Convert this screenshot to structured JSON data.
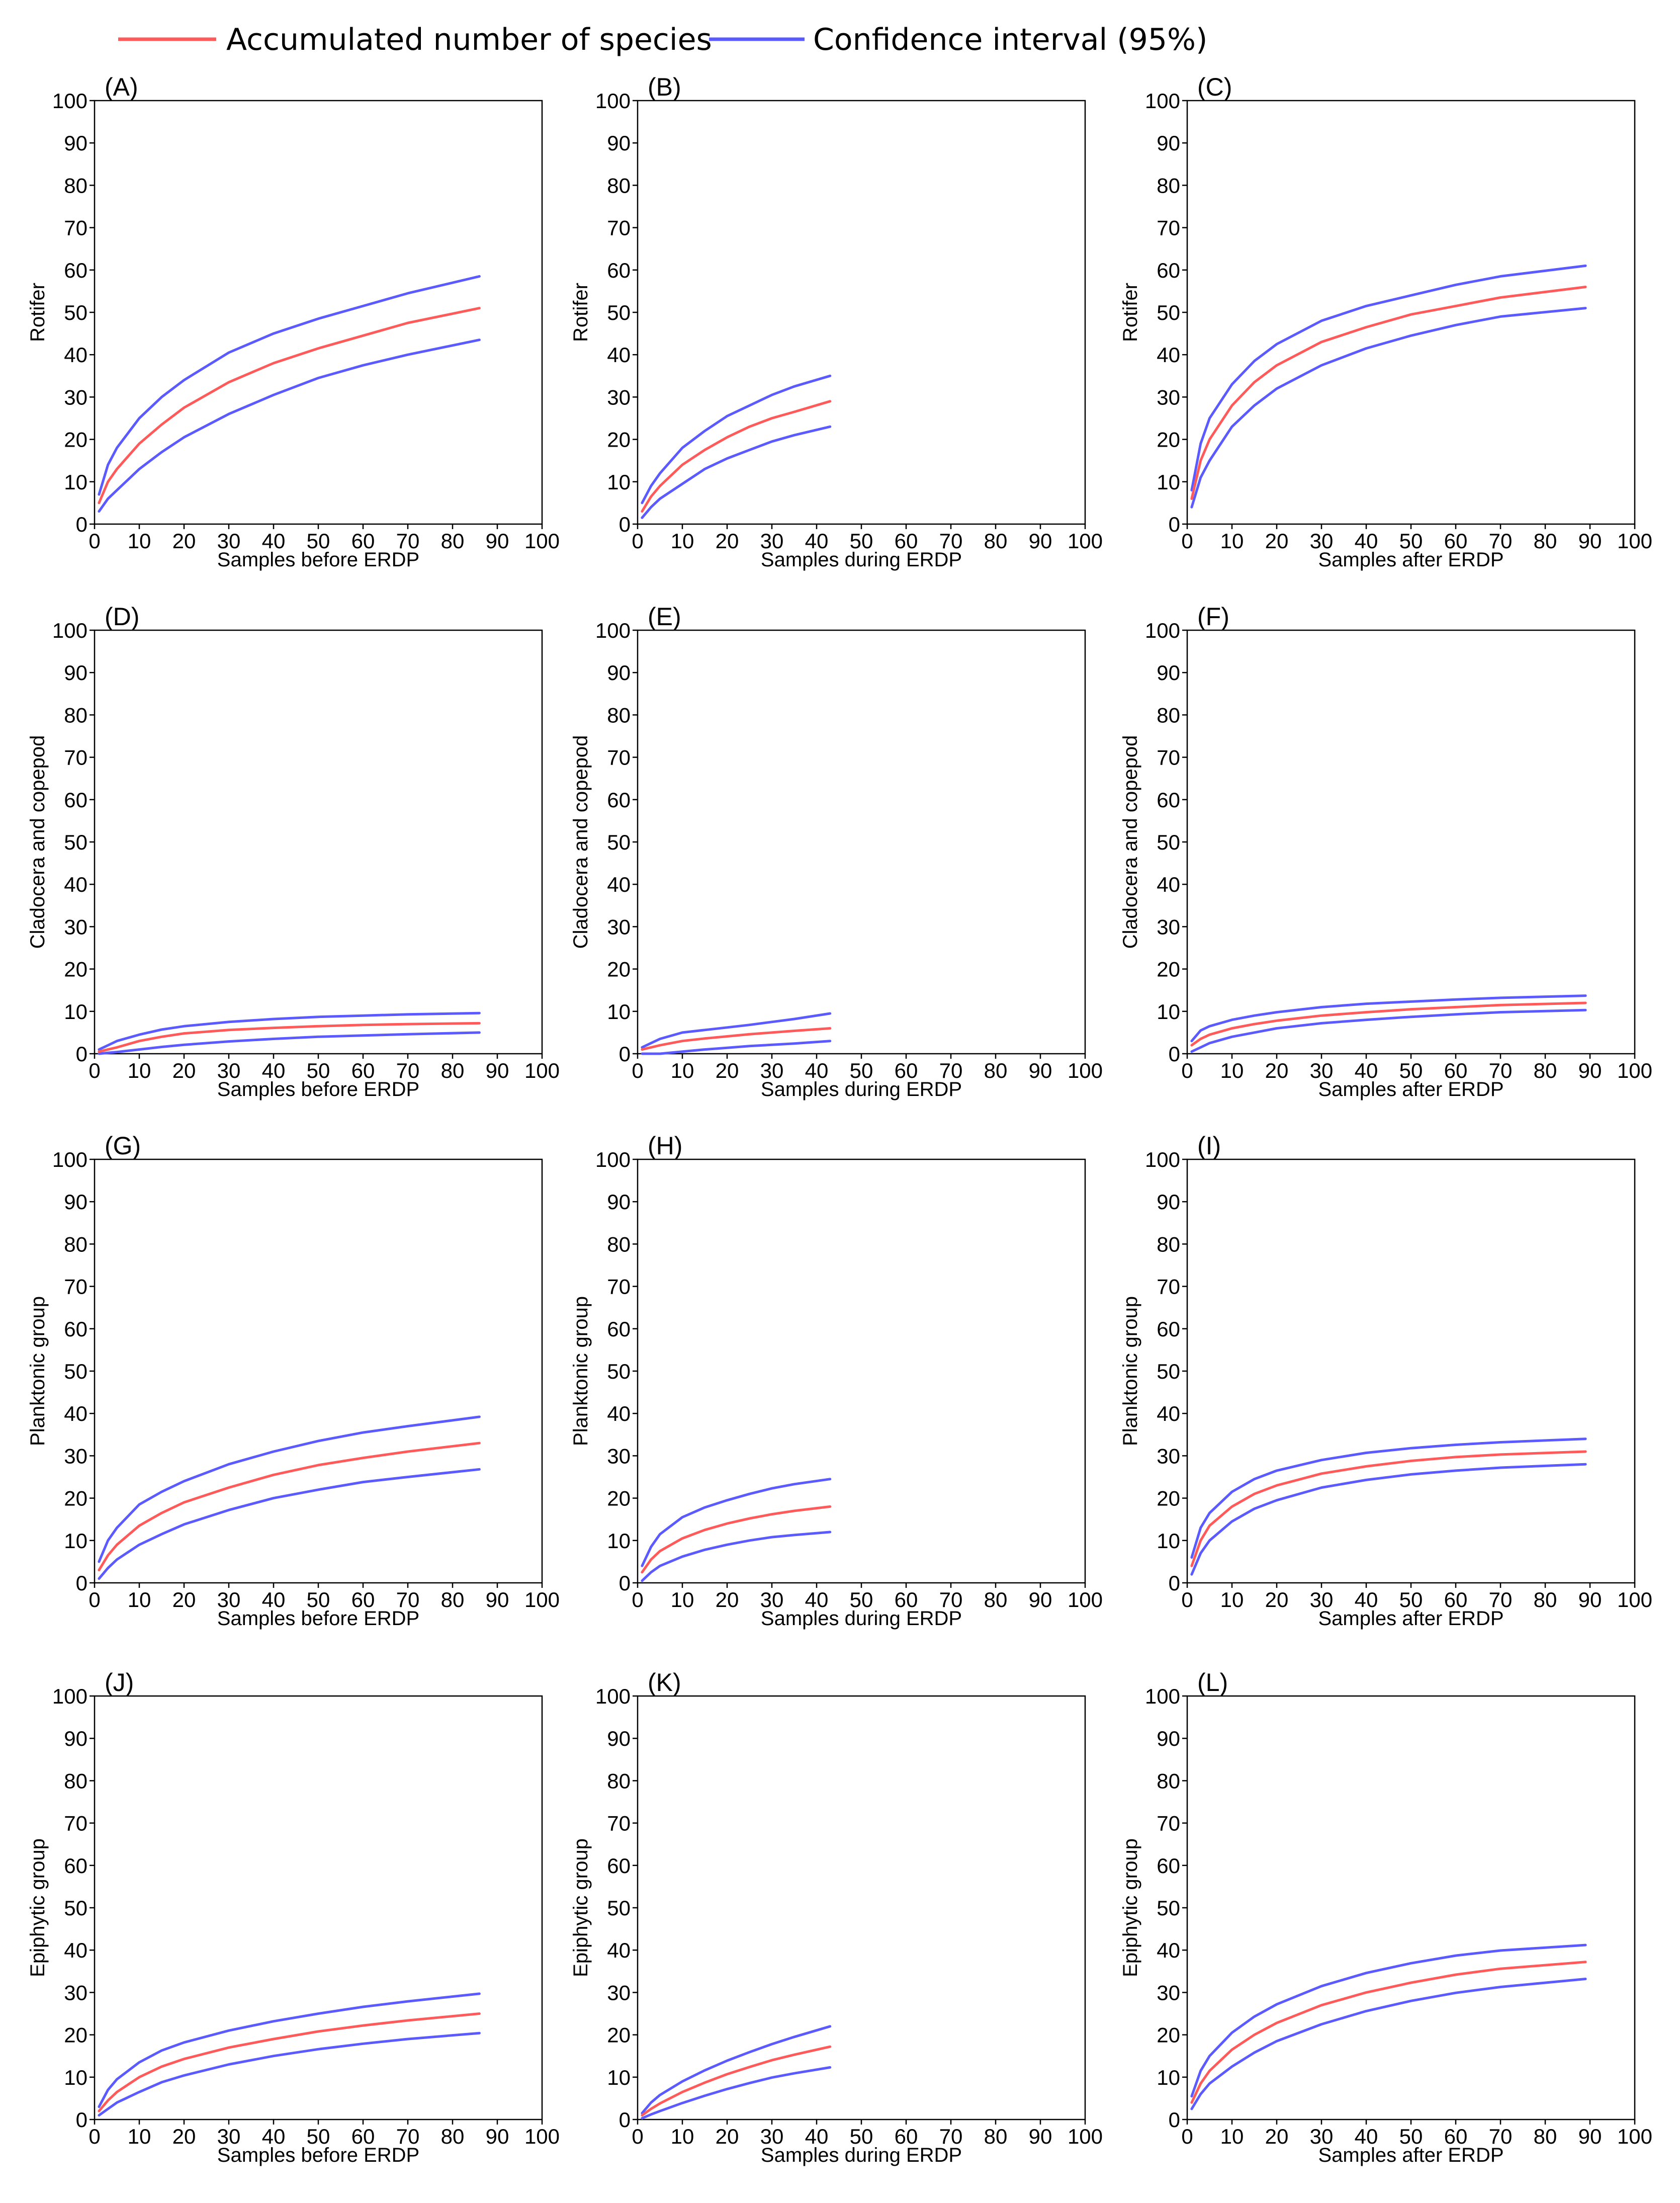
{
  "legend": {
    "entries": [
      {
        "label": "Accumulated number of species",
        "color": "#ff5a5a"
      },
      {
        "label": "Confidence interval (95%)",
        "color": "#5a5aff"
      }
    ]
  },
  "chart_data": [
    {
      "type": "line",
      "panel_label": "(A)",
      "ylabel": "Rotifer",
      "xlabel": "Samples before ERDP",
      "xlim": [
        0,
        100
      ],
      "ylim": [
        0,
        100
      ],
      "xticks": [
        0,
        10,
        20,
        30,
        40,
        50,
        60,
        70,
        80,
        90,
        100
      ],
      "yticks": [
        0,
        10,
        20,
        30,
        40,
        50,
        60,
        70,
        80,
        90,
        100
      ],
      "x": [
        1,
        3,
        5,
        10,
        15,
        20,
        30,
        40,
        50,
        60,
        70,
        86
      ],
      "series": [
        {
          "name": "Accumulated number of species",
          "values": [
            5,
            10,
            13,
            19,
            23.5,
            27.5,
            33.5,
            38,
            41.5,
            44.5,
            47.5,
            51
          ]
        },
        {
          "name": "Confidence interval (95%)",
          "values": [
            7,
            14,
            18,
            25,
            30,
            34,
            40.5,
            45,
            48.5,
            51.5,
            54.5,
            58.5
          ]
        },
        {
          "name": "Confidence interval (95%)",
          "values": [
            3,
            6,
            8,
            13,
            17,
            20.5,
            26,
            30.5,
            34.5,
            37.5,
            40,
            43.5
          ]
        }
      ]
    },
    {
      "type": "line",
      "panel_label": "(B)",
      "ylabel": "Rotifer",
      "xlabel": "Samples during ERDP",
      "xlim": [
        0,
        100
      ],
      "ylim": [
        0,
        100
      ],
      "xticks": [
        0,
        10,
        20,
        30,
        40,
        50,
        60,
        70,
        80,
        90,
        100
      ],
      "yticks": [
        0,
        10,
        20,
        30,
        40,
        50,
        60,
        70,
        80,
        90,
        100
      ],
      "x": [
        1,
        3,
        5,
        10,
        15,
        20,
        25,
        30,
        35,
        43
      ],
      "series": [
        {
          "name": "Accumulated number of species",
          "values": [
            3,
            6.5,
            9,
            14,
            17.5,
            20.5,
            23,
            25,
            26.5,
            29
          ]
        },
        {
          "name": "Confidence interval (95%)",
          "values": [
            5,
            9,
            12,
            18,
            22,
            25.5,
            28,
            30.5,
            32.5,
            35
          ]
        },
        {
          "name": "Confidence interval (95%)",
          "values": [
            1.5,
            4,
            6,
            9.5,
            13,
            15.5,
            17.5,
            19.5,
            21,
            23
          ]
        }
      ]
    },
    {
      "type": "line",
      "panel_label": "(C)",
      "ylabel": "Rotifer",
      "xlabel": "Samples after ERDP",
      "xlim": [
        0,
        100
      ],
      "ylim": [
        0,
        100
      ],
      "xticks": [
        0,
        10,
        20,
        30,
        40,
        50,
        60,
        70,
        80,
        90,
        100
      ],
      "yticks": [
        0,
        10,
        20,
        30,
        40,
        50,
        60,
        70,
        80,
        90,
        100
      ],
      "x": [
        1,
        3,
        5,
        10,
        15,
        20,
        30,
        40,
        50,
        60,
        70,
        89
      ],
      "series": [
        {
          "name": "Accumulated number of species",
          "values": [
            6,
            15,
            20,
            28,
            33.5,
            37.5,
            43,
            46.5,
            49.5,
            51.5,
            53.5,
            56
          ]
        },
        {
          "name": "Confidence interval (95%)",
          "values": [
            8,
            19,
            25,
            33,
            38.5,
            42.5,
            48,
            51.5,
            54,
            56.5,
            58.5,
            61
          ]
        },
        {
          "name": "Confidence interval (95%)",
          "values": [
            4,
            11,
            15,
            23,
            28,
            32,
            37.5,
            41.5,
            44.5,
            47,
            49,
            51
          ]
        }
      ]
    },
    {
      "type": "line",
      "panel_label": "(D)",
      "ylabel": "Cladocera and copepod",
      "xlabel": "Samples before ERDP",
      "xlim": [
        0,
        100
      ],
      "ylim": [
        0,
        100
      ],
      "xticks": [
        0,
        10,
        20,
        30,
        40,
        50,
        60,
        70,
        80,
        90,
        100
      ],
      "yticks": [
        0,
        10,
        20,
        30,
        40,
        50,
        60,
        70,
        80,
        90,
        100
      ],
      "x": [
        1,
        3,
        5,
        10,
        15,
        20,
        30,
        40,
        50,
        60,
        70,
        86
      ],
      "series": [
        {
          "name": "Accumulated number of species",
          "values": [
            0.5,
            1,
            1.5,
            3,
            4,
            4.8,
            5.6,
            6.1,
            6.5,
            6.8,
            7,
            7.2
          ]
        },
        {
          "name": "Confidence interval (95%)",
          "values": [
            1,
            2,
            3,
            4.5,
            5.7,
            6.5,
            7.5,
            8.2,
            8.7,
            9,
            9.3,
            9.6
          ]
        },
        {
          "name": "Confidence interval (95%)",
          "values": [
            0,
            0.2,
            0.4,
            1,
            1.6,
            2.1,
            2.9,
            3.5,
            4,
            4.3,
            4.6,
            5
          ]
        }
      ]
    },
    {
      "type": "line",
      "panel_label": "(E)",
      "ylabel": "Cladocera and copepod",
      "xlabel": "Samples during ERDP",
      "xlim": [
        0,
        100
      ],
      "ylim": [
        0,
        100
      ],
      "xticks": [
        0,
        10,
        20,
        30,
        40,
        50,
        60,
        70,
        80,
        90,
        100
      ],
      "yticks": [
        0,
        10,
        20,
        30,
        40,
        50,
        60,
        70,
        80,
        90,
        100
      ],
      "x": [
        1,
        3,
        5,
        10,
        15,
        20,
        25,
        30,
        35,
        43
      ],
      "series": [
        {
          "name": "Accumulated number of species",
          "values": [
            1,
            1.5,
            2,
            3,
            3.6,
            4.1,
            4.6,
            5,
            5.4,
            6
          ]
        },
        {
          "name": "Confidence interval (95%)",
          "values": [
            1.5,
            2.5,
            3.5,
            5,
            5.6,
            6.2,
            6.8,
            7.5,
            8.2,
            9.5
          ]
        },
        {
          "name": "Confidence interval (95%)",
          "values": [
            0,
            0,
            0,
            0.5,
            1,
            1.4,
            1.8,
            2.1,
            2.4,
            3
          ]
        }
      ]
    },
    {
      "type": "line",
      "panel_label": "(F)",
      "ylabel": "Cladocera and copepod",
      "xlabel": "Samples after ERDP",
      "xlim": [
        0,
        100
      ],
      "ylim": [
        0,
        100
      ],
      "xticks": [
        0,
        10,
        20,
        30,
        40,
        50,
        60,
        70,
        80,
        90,
        100
      ],
      "yticks": [
        0,
        10,
        20,
        30,
        40,
        50,
        60,
        70,
        80,
        90,
        100
      ],
      "x": [
        1,
        3,
        5,
        10,
        15,
        20,
        30,
        40,
        50,
        60,
        70,
        89
      ],
      "series": [
        {
          "name": "Accumulated number of species",
          "values": [
            2,
            3.5,
            4.5,
            6,
            7,
            7.8,
            9,
            9.8,
            10.5,
            11,
            11.5,
            12
          ]
        },
        {
          "name": "Confidence interval (95%)",
          "values": [
            3,
            5.5,
            6.5,
            8,
            9,
            9.8,
            11,
            11.8,
            12.3,
            12.8,
            13.2,
            13.7
          ]
        },
        {
          "name": "Confidence interval (95%)",
          "values": [
            0.5,
            1.5,
            2.5,
            4,
            5,
            6,
            7.2,
            8,
            8.7,
            9.3,
            9.8,
            10.3
          ]
        }
      ]
    },
    {
      "type": "line",
      "panel_label": "(G)",
      "ylabel": "Planktonic group",
      "xlabel": "Samples before ERDP",
      "xlim": [
        0,
        100
      ],
      "ylim": [
        0,
        100
      ],
      "xticks": [
        0,
        10,
        20,
        30,
        40,
        50,
        60,
        70,
        80,
        90,
        100
      ],
      "yticks": [
        0,
        10,
        20,
        30,
        40,
        50,
        60,
        70,
        80,
        90,
        100
      ],
      "x": [
        1,
        3,
        5,
        10,
        15,
        20,
        30,
        40,
        50,
        60,
        70,
        86
      ],
      "series": [
        {
          "name": "Accumulated number of species",
          "values": [
            3,
            6.5,
            9,
            13.5,
            16.5,
            19,
            22.5,
            25.5,
            27.8,
            29.5,
            31,
            33
          ]
        },
        {
          "name": "Confidence interval (95%)",
          "values": [
            5,
            10,
            13,
            18.5,
            21.5,
            24,
            28,
            31,
            33.5,
            35.5,
            37,
            39.2
          ]
        },
        {
          "name": "Confidence interval (95%)",
          "values": [
            1,
            3.5,
            5.5,
            9,
            11.5,
            13.8,
            17.2,
            20,
            22,
            23.8,
            25,
            26.8
          ]
        }
      ]
    },
    {
      "type": "line",
      "panel_label": "(H)",
      "ylabel": "Planktonic group",
      "xlabel": "Samples during ERDP",
      "xlim": [
        0,
        100
      ],
      "ylim": [
        0,
        100
      ],
      "xticks": [
        0,
        10,
        20,
        30,
        40,
        50,
        60,
        70,
        80,
        90,
        100
      ],
      "yticks": [
        0,
        10,
        20,
        30,
        40,
        50,
        60,
        70,
        80,
        90,
        100
      ],
      "x": [
        1,
        3,
        5,
        10,
        15,
        20,
        25,
        30,
        35,
        43
      ],
      "series": [
        {
          "name": "Accumulated number of species",
          "values": [
            2.5,
            5.5,
            7.5,
            10.5,
            12.5,
            14,
            15.2,
            16.2,
            17,
            18
          ]
        },
        {
          "name": "Confidence interval (95%)",
          "values": [
            4,
            8.5,
            11.5,
            15.5,
            17.8,
            19.5,
            21,
            22.3,
            23.3,
            24.5
          ]
        },
        {
          "name": "Confidence interval (95%)",
          "values": [
            0.5,
            2.5,
            4,
            6.2,
            7.8,
            9,
            10,
            10.8,
            11.3,
            12
          ]
        }
      ]
    },
    {
      "type": "line",
      "panel_label": "(I)",
      "ylabel": "Planktonic group",
      "xlabel": "Samples after ERDP",
      "xlim": [
        0,
        100
      ],
      "ylim": [
        0,
        100
      ],
      "xticks": [
        0,
        10,
        20,
        30,
        40,
        50,
        60,
        70,
        80,
        90,
        100
      ],
      "yticks": [
        0,
        10,
        20,
        30,
        40,
        50,
        60,
        70,
        80,
        90,
        100
      ],
      "x": [
        1,
        3,
        5,
        10,
        15,
        20,
        30,
        40,
        50,
        60,
        70,
        89
      ],
      "series": [
        {
          "name": "Accumulated number of species",
          "values": [
            4,
            10,
            13.5,
            18,
            21,
            23,
            25.8,
            27.5,
            28.8,
            29.7,
            30.3,
            31
          ]
        },
        {
          "name": "Confidence interval (95%)",
          "values": [
            6,
            13,
            16.5,
            21.5,
            24.5,
            26.5,
            29,
            30.7,
            31.8,
            32.6,
            33.2,
            34
          ]
        },
        {
          "name": "Confidence interval (95%)",
          "values": [
            2,
            7,
            10,
            14.5,
            17.5,
            19.5,
            22.5,
            24.3,
            25.6,
            26.5,
            27.2,
            28
          ]
        }
      ]
    },
    {
      "type": "line",
      "panel_label": "(J)",
      "ylabel": "Epiphytic group",
      "xlabel": "Samples before ERDP",
      "xlim": [
        0,
        100
      ],
      "ylim": [
        0,
        100
      ],
      "xticks": [
        0,
        10,
        20,
        30,
        40,
        50,
        60,
        70,
        80,
        90,
        100
      ],
      "yticks": [
        0,
        10,
        20,
        30,
        40,
        50,
        60,
        70,
        80,
        90,
        100
      ],
      "x": [
        1,
        3,
        5,
        10,
        15,
        20,
        30,
        40,
        50,
        60,
        70,
        86
      ],
      "series": [
        {
          "name": "Accumulated number of species",
          "values": [
            2,
            4.5,
            6.5,
            10,
            12.5,
            14.3,
            17,
            19,
            20.8,
            22.2,
            23.4,
            25
          ]
        },
        {
          "name": "Confidence interval (95%)",
          "values": [
            3,
            7,
            9.5,
            13.5,
            16.3,
            18.2,
            21,
            23.2,
            25,
            26.6,
            27.9,
            29.7
          ]
        },
        {
          "name": "Confidence interval (95%)",
          "values": [
            1,
            2.5,
            4,
            6.5,
            8.8,
            10.4,
            13,
            15,
            16.6,
            17.9,
            19,
            20.4
          ]
        }
      ]
    },
    {
      "type": "line",
      "panel_label": "(K)",
      "ylabel": "Epiphytic group",
      "xlabel": "Samples during ERDP",
      "xlim": [
        0,
        100
      ],
      "ylim": [
        0,
        100
      ],
      "xticks": [
        0,
        10,
        20,
        30,
        40,
        50,
        60,
        70,
        80,
        90,
        100
      ],
      "yticks": [
        0,
        10,
        20,
        30,
        40,
        50,
        60,
        70,
        80,
        90,
        100
      ],
      "x": [
        1,
        3,
        5,
        10,
        15,
        20,
        25,
        30,
        35,
        43
      ],
      "series": [
        {
          "name": "Accumulated number of species",
          "values": [
            1,
            2.5,
            3.8,
            6.5,
            8.7,
            10.7,
            12.4,
            14,
            15.3,
            17.2
          ]
        },
        {
          "name": "Confidence interval (95%)",
          "values": [
            1.5,
            4,
            5.8,
            9,
            11.6,
            13.9,
            15.9,
            17.8,
            19.5,
            22
          ]
        },
        {
          "name": "Confidence interval (95%)",
          "values": [
            0.3,
            1.2,
            2,
            3.9,
            5.6,
            7.2,
            8.6,
            9.9,
            10.9,
            12.3
          ]
        }
      ]
    },
    {
      "type": "line",
      "panel_label": "(L)",
      "ylabel": "Epiphytic group",
      "xlabel": "Samples after ERDP",
      "xlim": [
        0,
        100
      ],
      "ylim": [
        0,
        100
      ],
      "xticks": [
        0,
        10,
        20,
        30,
        40,
        50,
        60,
        70,
        80,
        90,
        100
      ],
      "yticks": [
        0,
        10,
        20,
        30,
        40,
        50,
        60,
        70,
        80,
        90,
        100
      ],
      "x": [
        1,
        3,
        5,
        10,
        15,
        20,
        30,
        40,
        50,
        60,
        70,
        89
      ],
      "series": [
        {
          "name": "Accumulated number of species",
          "values": [
            4,
            8.5,
            11.5,
            16.5,
            20,
            22.8,
            27,
            30,
            32.3,
            34.2,
            35.6,
            37.2
          ]
        },
        {
          "name": "Confidence interval (95%)",
          "values": [
            5.5,
            11.5,
            15,
            20.5,
            24.3,
            27.2,
            31.5,
            34.6,
            36.9,
            38.7,
            39.9,
            41.2
          ]
        },
        {
          "name": "Confidence interval (95%)",
          "values": [
            2.5,
            6,
            8.5,
            12.5,
            15.8,
            18.5,
            22.5,
            25.6,
            28,
            29.9,
            31.3,
            33.2
          ]
        }
      ]
    }
  ]
}
